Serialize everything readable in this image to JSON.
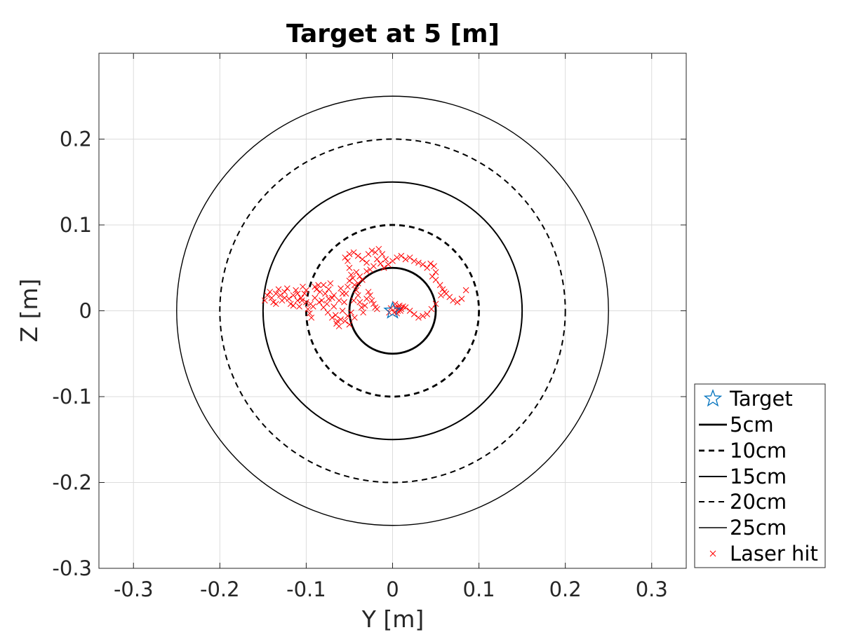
{
  "chart_data": {
    "type": "scatter",
    "title": "Target at 5 [m]",
    "xlabel": "Y [m]",
    "ylabel": "Z [m]",
    "xlim": [
      -0.34,
      0.34
    ],
    "ylim": [
      -0.3,
      0.3
    ],
    "xticks": [
      -0.3,
      -0.2,
      -0.1,
      0,
      0.1,
      0.2,
      0.3
    ],
    "yticks": [
      -0.3,
      -0.2,
      -0.1,
      0,
      0.1,
      0.2
    ],
    "xtick_labels": [
      "-0.3",
      "-0.2",
      "-0.1",
      "0",
      "0.1",
      "0.2",
      "0.3"
    ],
    "ytick_labels": [
      "-0.3",
      "-0.2",
      "-0.1",
      "0",
      "0.1",
      "0.2"
    ],
    "grid": true,
    "legend_position": "outside-bottom-right",
    "target": {
      "name": "Target",
      "y": 0,
      "z": 0,
      "marker": "star",
      "color": "#0072bd"
    },
    "circles": [
      {
        "name": "5cm",
        "radius": 0.05,
        "style": "solid",
        "weight": "thick"
      },
      {
        "name": "10cm",
        "radius": 0.1,
        "style": "dashed",
        "weight": "thick"
      },
      {
        "name": "15cm",
        "radius": 0.15,
        "style": "solid",
        "weight": "medium"
      },
      {
        "name": "20cm",
        "radius": 0.2,
        "style": "dashed",
        "weight": "medium"
      },
      {
        "name": "25cm",
        "radius": 0.25,
        "style": "solid",
        "weight": "thin"
      }
    ],
    "hits": {
      "name": "Laser hit",
      "marker": "x",
      "color": "#ff0000",
      "points": [
        [
          -0.148,
          0.012
        ],
        [
          -0.145,
          0.018
        ],
        [
          -0.142,
          0.022
        ],
        [
          -0.14,
          0.015
        ],
        [
          -0.138,
          0.01
        ],
        [
          -0.135,
          0.02
        ],
        [
          -0.132,
          0.025
        ],
        [
          -0.13,
          0.018
        ],
        [
          -0.128,
          0.012
        ],
        [
          -0.125,
          0.022
        ],
        [
          -0.122,
          0.026
        ],
        [
          -0.12,
          0.014
        ],
        [
          -0.118,
          0.008
        ],
        [
          -0.115,
          0.018
        ],
        [
          -0.112,
          0.024
        ],
        [
          -0.11,
          0.012
        ],
        [
          -0.108,
          0.005
        ],
        [
          -0.106,
          0.015
        ],
        [
          -0.104,
          0.028
        ],
        [
          -0.102,
          0.02
        ],
        [
          -0.1,
          0.01
        ],
        [
          -0.098,
          0.002
        ],
        [
          -0.096,
          -0.003
        ],
        [
          -0.094,
          -0.008
        ],
        [
          -0.092,
          0.005
        ],
        [
          -0.09,
          0.015
        ],
        [
          -0.088,
          0.025
        ],
        [
          -0.086,
          0.03
        ],
        [
          -0.084,
          0.022
        ],
        [
          -0.082,
          0.012
        ],
        [
          -0.08,
          0.03
        ],
        [
          -0.078,
          0.02
        ],
        [
          -0.076,
          0.008
        ],
        [
          -0.074,
          0.025
        ],
        [
          -0.072,
          0.032
        ],
        [
          -0.07,
          0.015
        ],
        [
          -0.068,
          0.005
        ],
        [
          -0.066,
          -0.005
        ],
        [
          -0.064,
          -0.012
        ],
        [
          -0.062,
          -0.018
        ],
        [
          -0.06,
          -0.01
        ],
        [
          -0.058,
          0.0
        ],
        [
          -0.056,
          0.01
        ],
        [
          -0.054,
          0.02
        ],
        [
          -0.052,
          0.028
        ],
        [
          -0.05,
          0.035
        ],
        [
          -0.048,
          0.042
        ],
        [
          -0.046,
          0.038
        ],
        [
          -0.044,
          0.03
        ],
        [
          -0.042,
          0.024
        ],
        [
          -0.04,
          0.018
        ],
        [
          -0.038,
          0.01
        ],
        [
          -0.036,
          0.004
        ],
        [
          -0.034,
          -0.002
        ],
        [
          -0.032,
          0.006
        ],
        [
          -0.03,
          0.014
        ],
        [
          -0.028,
          0.022
        ],
        [
          -0.026,
          0.018
        ],
        [
          -0.024,
          0.012
        ],
        [
          -0.022,
          0.008
        ],
        [
          -0.02,
          0.004
        ],
        [
          -0.018,
          0.002
        ],
        [
          -0.065,
          -0.015
        ],
        [
          -0.07,
          -0.008
        ],
        [
          -0.075,
          -0.002
        ],
        [
          -0.08,
          0.004
        ],
        [
          -0.085,
          0.01
        ],
        [
          -0.095,
          0.008
        ],
        [
          -0.105,
          0.012
        ],
        [
          -0.115,
          0.006
        ],
        [
          -0.05,
          -0.016
        ],
        [
          -0.055,
          -0.012
        ],
        [
          -0.045,
          0.012
        ],
        [
          -0.04,
          0.032
        ],
        [
          -0.042,
          0.045
        ],
        [
          -0.038,
          0.04
        ],
        [
          -0.035,
          0.036
        ],
        [
          -0.05,
          0.05
        ],
        [
          -0.052,
          0.058
        ],
        [
          -0.055,
          0.062
        ],
        [
          -0.05,
          0.066
        ],
        [
          -0.045,
          0.068
        ],
        [
          -0.04,
          0.064
        ],
        [
          -0.035,
          0.06
        ],
        [
          -0.03,
          0.056
        ],
        [
          -0.028,
          0.066
        ],
        [
          -0.024,
          0.07
        ],
        [
          -0.02,
          0.068
        ],
        [
          -0.016,
          0.072
        ],
        [
          -0.012,
          0.066
        ],
        [
          -0.008,
          0.06
        ],
        [
          -0.005,
          0.054
        ],
        [
          -0.01,
          0.05
        ],
        [
          -0.014,
          0.055
        ],
        [
          -0.018,
          0.06
        ],
        [
          -0.022,
          0.052
        ],
        [
          -0.026,
          0.048
        ],
        [
          -0.03,
          0.046
        ],
        [
          0.0,
          0.058
        ],
        [
          0.005,
          0.062
        ],
        [
          0.01,
          0.064
        ],
        [
          0.015,
          0.06
        ],
        [
          0.02,
          0.062
        ],
        [
          0.025,
          0.058
        ],
        [
          0.03,
          0.056
        ],
        [
          0.035,
          0.054
        ],
        [
          0.04,
          0.05
        ],
        [
          0.044,
          0.055
        ],
        [
          0.048,
          0.052
        ],
        [
          0.05,
          0.045
        ],
        [
          0.046,
          0.04
        ],
        [
          0.05,
          0.036
        ],
        [
          0.055,
          0.03
        ],
        [
          0.058,
          0.025
        ],
        [
          0.06,
          0.022
        ],
        [
          0.056,
          0.018
        ],
        [
          0.062,
          0.02
        ],
        [
          0.066,
          0.016
        ],
        [
          0.07,
          0.012
        ],
        [
          0.075,
          0.01
        ],
        [
          0.08,
          0.014
        ],
        [
          0.085,
          0.024
        ],
        [
          0.05,
          0.008
        ],
        [
          0.045,
          0.002
        ],
        [
          0.04,
          -0.004
        ],
        [
          0.035,
          -0.006
        ],
        [
          0.03,
          -0.008
        ],
        [
          0.025,
          -0.004
        ],
        [
          0.02,
          0.0
        ],
        [
          0.015,
          0.004
        ],
        [
          0.01,
          0.002
        ],
        [
          0.008,
          0.006
        ],
        [
          0.006,
          0.0
        ],
        [
          0.004,
          0.004
        ],
        [
          0.002,
          -0.002
        ],
        [
          -0.002,
          0.003
        ],
        [
          0.003,
          0.008
        ],
        [
          0.007,
          0.003
        ],
        [
          0.005,
          -0.003
        ],
        [
          0.009,
          0.0
        ],
        [
          0.012,
          0.005
        ],
        [
          -0.004,
          -0.002
        ],
        [
          -0.048,
          -0.002
        ],
        [
          -0.044,
          -0.008
        ],
        [
          -0.058,
          0.02
        ],
        [
          -0.062,
          0.012
        ],
        [
          -0.068,
          0.018
        ],
        [
          -0.09,
          0.028
        ],
        [
          -0.1,
          0.024
        ],
        [
          -0.11,
          0.02
        ],
        [
          -0.125,
          0.015
        ],
        [
          -0.135,
          0.008
        ],
        [
          -0.052,
          -0.006
        ],
        [
          -0.06,
          0.026
        ],
        [
          -0.074,
          0.014
        ]
      ]
    }
  }
}
